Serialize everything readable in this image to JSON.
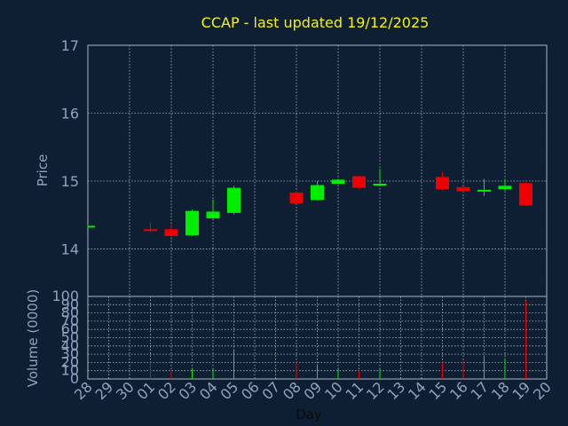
{
  "chart_data": {
    "type": "candlestick",
    "title": "CCAP - last updated 19/12/2025",
    "ylabel": "Price",
    "ylim": [
      13.3,
      17
    ],
    "yticks": [
      "14",
      "15",
      "16",
      "17"
    ],
    "volume_label": "Volume (0000)",
    "volume_ylim": [
      0,
      100
    ],
    "volume_ticks": [
      "0",
      "10",
      "20",
      "30",
      "40",
      "50",
      "60",
      "70",
      "80",
      "90",
      "100"
    ],
    "xlabel": "Day",
    "days": [
      "28",
      "29",
      "30",
      "01",
      "02",
      "03",
      "04",
      "05",
      "06",
      "07",
      "08",
      "09",
      "10",
      "11",
      "12",
      "13",
      "14",
      "15",
      "16",
      "17",
      "18",
      "19",
      "20"
    ],
    "candles": [
      {
        "day": "28",
        "open": 14.32,
        "high": 14.35,
        "low": 14.31,
        "close": 14.34,
        "volume": 0
      },
      {
        "day": "01",
        "open": 14.29,
        "high": 14.39,
        "low": 14.25,
        "close": 14.28,
        "volume": 20
      },
      {
        "day": "02",
        "open": 14.29,
        "high": 14.36,
        "low": 14.17,
        "close": 14.19,
        "volume": 10
      },
      {
        "day": "03",
        "open": 14.2,
        "high": 14.58,
        "low": 14.19,
        "close": 14.56,
        "volume": 12
      },
      {
        "day": "04",
        "open": 14.45,
        "high": 14.73,
        "low": 14.44,
        "close": 14.55,
        "volume": 12
      },
      {
        "day": "05",
        "open": 14.53,
        "high": 14.93,
        "low": 14.51,
        "close": 14.9,
        "volume": 35
      },
      {
        "day": "08",
        "open": 14.83,
        "high": 14.86,
        "low": 14.66,
        "close": 14.67,
        "volume": 20
      },
      {
        "day": "09",
        "open": 14.72,
        "high": 15.0,
        "low": 14.71,
        "close": 14.94,
        "volume": 18
      },
      {
        "day": "10",
        "open": 14.96,
        "high": 15.03,
        "low": 14.95,
        "close": 15.02,
        "volume": 12
      },
      {
        "day": "11",
        "open": 15.07,
        "high": 15.08,
        "low": 14.88,
        "close": 14.9,
        "volume": 10
      },
      {
        "day": "12",
        "open": 14.94,
        "high": 15.18,
        "low": 14.94,
        "close": 14.96,
        "volume": 12
      },
      {
        "day": "15",
        "open": 15.06,
        "high": 15.14,
        "low": 14.86,
        "close": 14.88,
        "volume": 20
      },
      {
        "day": "16",
        "open": 14.91,
        "high": 14.92,
        "low": 14.84,
        "close": 14.85,
        "volume": 22
      },
      {
        "day": "17",
        "open": 14.85,
        "high": 15.03,
        "low": 14.78,
        "close": 14.87,
        "volume": 28
      },
      {
        "day": "18",
        "open": 14.88,
        "high": 15.03,
        "low": 14.86,
        "close": 14.93,
        "volume": 25
      },
      {
        "day": "19",
        "open": 14.97,
        "high": 14.98,
        "low": 14.63,
        "close": 14.64,
        "volume": 95
      }
    ],
    "colors": {
      "background": "#0f1f33",
      "plot_background": "#0f1f33",
      "grid": "#a9b4c2",
      "up": "#00ee00",
      "down": "#ee0000",
      "title": "#f5f500",
      "text": "#8fa3be"
    },
    "grid": true
  }
}
